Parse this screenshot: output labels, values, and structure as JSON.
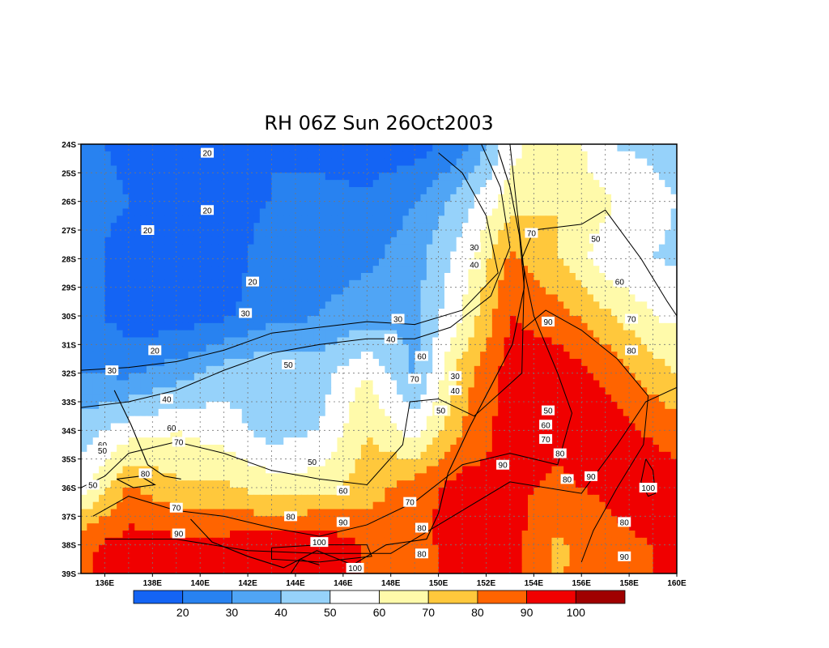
{
  "chart_data": {
    "type": "heatmap",
    "title": "RH 06Z Sun 26Oct2003",
    "x_ticks": [
      "136E",
      "138E",
      "140E",
      "142E",
      "144E",
      "146E",
      "148E",
      "150E",
      "152E",
      "154E",
      "156E",
      "158E",
      "160E"
    ],
    "y_ticks": [
      "24S",
      "25S",
      "26S",
      "27S",
      "28S",
      "29S",
      "30S",
      "31S",
      "32S",
      "33S",
      "34S",
      "35S",
      "36S",
      "37S",
      "38S",
      "39S"
    ],
    "xlim": [
      135,
      160
    ],
    "ylim": [
      -39,
      -24
    ],
    "grid": true,
    "colorbar": {
      "labels": [
        "20",
        "30",
        "40",
        "50",
        "60",
        "70",
        "80",
        "90",
        "100"
      ],
      "colors": [
        "#1464f4",
        "#2882f0",
        "#50a5f5",
        "#96d2fa",
        "#ffffff",
        "#fffaaa",
        "#ffc83c",
        "#ff6400",
        "#f00000",
        "#a00000"
      ]
    },
    "grid_lon": [
      135,
      137,
      139,
      141,
      143,
      145,
      147,
      149,
      151,
      153,
      155,
      157,
      159,
      161
    ],
    "grid_lat": [
      -24,
      -26,
      -28,
      -30,
      -32,
      -34,
      -36,
      -38,
      -40
    ],
    "rh_field": [
      [
        22,
        18,
        16,
        17,
        20,
        18,
        14,
        15,
        25,
        55,
        70,
        50,
        48,
        45
      ],
      [
        25,
        20,
        18,
        17,
        20,
        22,
        22,
        30,
        45,
        65,
        70,
        62,
        52,
        48
      ],
      [
        24,
        15,
        14,
        16,
        24,
        26,
        28,
        35,
        55,
        82,
        70,
        55,
        50,
        47
      ],
      [
        25,
        15,
        14,
        18,
        26,
        30,
        35,
        38,
        60,
        90,
        85,
        72,
        60,
        55
      ],
      [
        30,
        28,
        35,
        45,
        50,
        45,
        60,
        38,
        75,
        95,
        96,
        88,
        75,
        65
      ],
      [
        45,
        55,
        60,
        55,
        45,
        50,
        70,
        55,
        80,
        95,
        93,
        96,
        88,
        80
      ],
      [
        55,
        82,
        72,
        72,
        65,
        65,
        75,
        86,
        95,
        92,
        88,
        92,
        97,
        95
      ],
      [
        88,
        94,
        94,
        94,
        97,
        100,
        88,
        84,
        98,
        95,
        78,
        86,
        90,
        92
      ],
      [
        90,
        92,
        95,
        96,
        98,
        98,
        90,
        85,
        92,
        90,
        80,
        85,
        90,
        92
      ]
    ],
    "contour_labels": [
      {
        "text": "20",
        "lon": 140.3,
        "lat": -24.3
      },
      {
        "text": "20",
        "lon": 140.3,
        "lat": -26.3
      },
      {
        "text": "20",
        "lon": 137.8,
        "lat": -27.0
      },
      {
        "text": "20",
        "lon": 142.2,
        "lat": -28.8
      },
      {
        "text": "30",
        "lon": 141.9,
        "lat": -29.9
      },
      {
        "text": "20",
        "lon": 138.1,
        "lat": -31.2
      },
      {
        "text": "30",
        "lon": 136.3,
        "lat": -31.9
      },
      {
        "text": "40",
        "lon": 138.6,
        "lat": -32.9
      },
      {
        "text": "30",
        "lon": 148.3,
        "lat": -30.1
      },
      {
        "text": "40",
        "lon": 148.0,
        "lat": -30.8
      },
      {
        "text": "30",
        "lon": 151.5,
        "lat": -27.6
      },
      {
        "text": "40",
        "lon": 151.5,
        "lat": -28.2
      },
      {
        "text": "50",
        "lon": 143.7,
        "lat": -31.7
      },
      {
        "text": "60",
        "lon": 149.3,
        "lat": -31.4
      },
      {
        "text": "70",
        "lon": 149.0,
        "lat": -32.2
      },
      {
        "text": "30",
        "lon": 150.7,
        "lat": -32.1
      },
      {
        "text": "40",
        "lon": 150.7,
        "lat": -32.6
      },
      {
        "text": "50",
        "lon": 150.1,
        "lat": -33.3
      },
      {
        "text": "70",
        "lon": 153.9,
        "lat": -27.1
      },
      {
        "text": "50",
        "lon": 156.6,
        "lat": -27.3
      },
      {
        "text": "60",
        "lon": 157.6,
        "lat": -28.8
      },
      {
        "text": "70",
        "lon": 158.1,
        "lat": -30.1
      },
      {
        "text": "90",
        "lon": 154.6,
        "lat": -30.2
      },
      {
        "text": "80",
        "lon": 158.1,
        "lat": -31.2
      },
      {
        "text": "50",
        "lon": 154.6,
        "lat": -33.3
      },
      {
        "text": "60",
        "lon": 154.5,
        "lat": -33.8
      },
      {
        "text": "70",
        "lon": 154.5,
        "lat": -34.3
      },
      {
        "text": "80",
        "lon": 155.1,
        "lat": -34.8
      },
      {
        "text": "90",
        "lon": 152.7,
        "lat": -35.2
      },
      {
        "text": "80",
        "lon": 155.4,
        "lat": -35.7
      },
      {
        "text": "90",
        "lon": 156.4,
        "lat": -35.6
      },
      {
        "text": "100",
        "lon": 158.8,
        "lat": -36.0
      },
      {
        "text": "80",
        "lon": 157.8,
        "lat": -37.2
      },
      {
        "text": "90",
        "lon": 157.8,
        "lat": -38.4
      },
      {
        "text": "60",
        "lon": 138.8,
        "lat": -33.9
      },
      {
        "text": "60",
        "lon": 135.9,
        "lat": -34.5
      },
      {
        "text": "50",
        "lon": 135.9,
        "lat": -34.7
      },
      {
        "text": "70",
        "lon": 139.1,
        "lat": -34.4
      },
      {
        "text": "80",
        "lon": 137.7,
        "lat": -35.5
      },
      {
        "text": "50",
        "lon": 135.5,
        "lat": -35.9
      },
      {
        "text": "70",
        "lon": 139.0,
        "lat": -36.7
      },
      {
        "text": "90",
        "lon": 139.1,
        "lat": -37.6
      },
      {
        "text": "50",
        "lon": 144.7,
        "lat": -35.1
      },
      {
        "text": "60",
        "lon": 146.0,
        "lat": -36.1
      },
      {
        "text": "70",
        "lon": 148.8,
        "lat": -36.5
      },
      {
        "text": "80",
        "lon": 143.8,
        "lat": -37.0
      },
      {
        "text": "90",
        "lon": 146.0,
        "lat": -37.2
      },
      {
        "text": "80",
        "lon": 149.3,
        "lat": -37.4
      },
      {
        "text": "80",
        "lon": 149.3,
        "lat": -38.3
      },
      {
        "text": "100",
        "lon": 145.0,
        "lat": -37.9
      },
      {
        "text": "100",
        "lon": 146.5,
        "lat": -38.8
      }
    ],
    "contour_lines": [
      [
        [
          135,
          -31.9
        ],
        [
          137,
          -31.8
        ],
        [
          139,
          -31.6
        ],
        [
          141,
          -31.2
        ],
        [
          143,
          -30.6
        ],
        [
          145,
          -30.4
        ],
        [
          147,
          -30.2
        ],
        [
          149,
          -30.3
        ],
        [
          151,
          -29.8
        ],
        [
          152.5,
          -28.5
        ],
        [
          152,
          -26.5
        ],
        [
          151,
          -25
        ],
        [
          150,
          -24.3
        ]
      ],
      [
        [
          135,
          -33.2
        ],
        [
          137,
          -33.0
        ],
        [
          139,
          -32.6
        ],
        [
          141,
          -31.9
        ],
        [
          143,
          -31.3
        ],
        [
          145,
          -31.0
        ],
        [
          147,
          -30.8
        ],
        [
          149,
          -30.8
        ],
        [
          150.5,
          -30.4
        ],
        [
          152.2,
          -29.3
        ],
        [
          153,
          -27.6
        ],
        [
          152.6,
          -25.5
        ],
        [
          151.8,
          -24
        ]
      ],
      [
        [
          135,
          -36.0
        ],
        [
          136,
          -35.6
        ],
        [
          137,
          -34.8
        ],
        [
          139,
          -34.4
        ],
        [
          141,
          -34.8
        ],
        [
          143,
          -35.4
        ],
        [
          145,
          -35.7
        ],
        [
          147,
          -35.9
        ],
        [
          148.5,
          -34.5
        ],
        [
          148.8,
          -33.0
        ],
        [
          150,
          -32.9
        ],
        [
          151.5,
          -33.5
        ],
        [
          153.5,
          -32.0
        ],
        [
          153.6,
          -28.5
        ],
        [
          153.3,
          -26.3
        ],
        [
          153,
          -24
        ]
      ],
      [
        [
          135.5,
          -37.0
        ],
        [
          137,
          -36.3
        ],
        [
          139,
          -36.8
        ],
        [
          141,
          -37.0
        ],
        [
          143,
          -37.4
        ],
        [
          145,
          -37.7
        ],
        [
          147,
          -37.3
        ],
        [
          149,
          -36.5
        ],
        [
          151,
          -35.2
        ],
        [
          153,
          -34.8
        ],
        [
          155,
          -35.2
        ],
        [
          155.6,
          -33.4
        ],
        [
          155,
          -32
        ],
        [
          154,
          -30
        ],
        [
          153.5,
          -28
        ],
        [
          154,
          -27
        ],
        [
          156,
          -26.8
        ],
        [
          157,
          -26.3
        ],
        [
          158.5,
          -28
        ],
        [
          159.6,
          -29.5
        ],
        [
          160,
          -30
        ]
      ],
      [
        [
          136,
          -37.8
        ],
        [
          139,
          -37.8
        ],
        [
          142,
          -38.2
        ],
        [
          145,
          -38.3
        ],
        [
          148,
          -38.3
        ],
        [
          150,
          -37.3
        ],
        [
          153,
          -35.8
        ],
        [
          156,
          -36.2
        ],
        [
          157.5,
          -34.5
        ],
        [
          158.7,
          -33
        ],
        [
          160,
          -32.5
        ]
      ],
      [
        [
          153.5,
          -30.5
        ],
        [
          154.5,
          -29.8
        ],
        [
          156,
          -30.5
        ],
        [
          157.5,
          -31.5
        ],
        [
          158.8,
          -32.8
        ],
        [
          158.6,
          -34.5
        ],
        [
          157.5,
          -36.0
        ],
        [
          156.5,
          -37.5
        ],
        [
          156.0,
          -38.6
        ]
      ],
      [
        [
          143.0,
          -38.1
        ],
        [
          145,
          -38.0
        ],
        [
          147,
          -38.0
        ],
        [
          147.2,
          -38.4
        ],
        [
          145,
          -38.6
        ],
        [
          143.0,
          -38.5
        ],
        [
          143.0,
          -38.1
        ]
      ],
      [
        [
          158.7,
          -35.0
        ],
        [
          159.0,
          -35.4
        ],
        [
          159.1,
          -36.2
        ],
        [
          158.8,
          -36.3
        ],
        [
          158.5,
          -35.8
        ],
        [
          158.7,
          -35.0
        ]
      ]
    ],
    "coastline": [
      [
        [
          136.4,
          -32.6
        ],
        [
          137.1,
          -33.8
        ],
        [
          137.8,
          -35.2
        ],
        [
          138.5,
          -35.6
        ],
        [
          139.2,
          -35.7
        ]
      ],
      [
        [
          139.6,
          -37.1
        ],
        [
          140.5,
          -37.9
        ],
        [
          142,
          -38.4
        ],
        [
          143.5,
          -38.8
        ],
        [
          144.9,
          -38.2
        ],
        [
          146.4,
          -38.7
        ],
        [
          147.8,
          -38.0
        ],
        [
          149.5,
          -37.8
        ],
        [
          150.0,
          -36.9
        ],
        [
          150.4,
          -35.5
        ],
        [
          151.3,
          -33.9
        ],
        [
          152.3,
          -32.3
        ],
        [
          153.1,
          -31.0
        ],
        [
          153.6,
          -29.0
        ],
        [
          153.4,
          -27.2
        ],
        [
          153.0,
          -25.5
        ],
        [
          152.5,
          -24.2
        ]
      ],
      [
        [
          136.5,
          -35.7
        ],
        [
          137.5,
          -35.6
        ],
        [
          138.1,
          -35.9
        ],
        [
          137.2,
          -36.0
        ],
        [
          136.5,
          -35.7
        ]
      ],
      [
        [
          143.8,
          -39.0
        ],
        [
          144.2,
          -38.5
        ],
        [
          145.0,
          -38.7
        ]
      ]
    ]
  }
}
